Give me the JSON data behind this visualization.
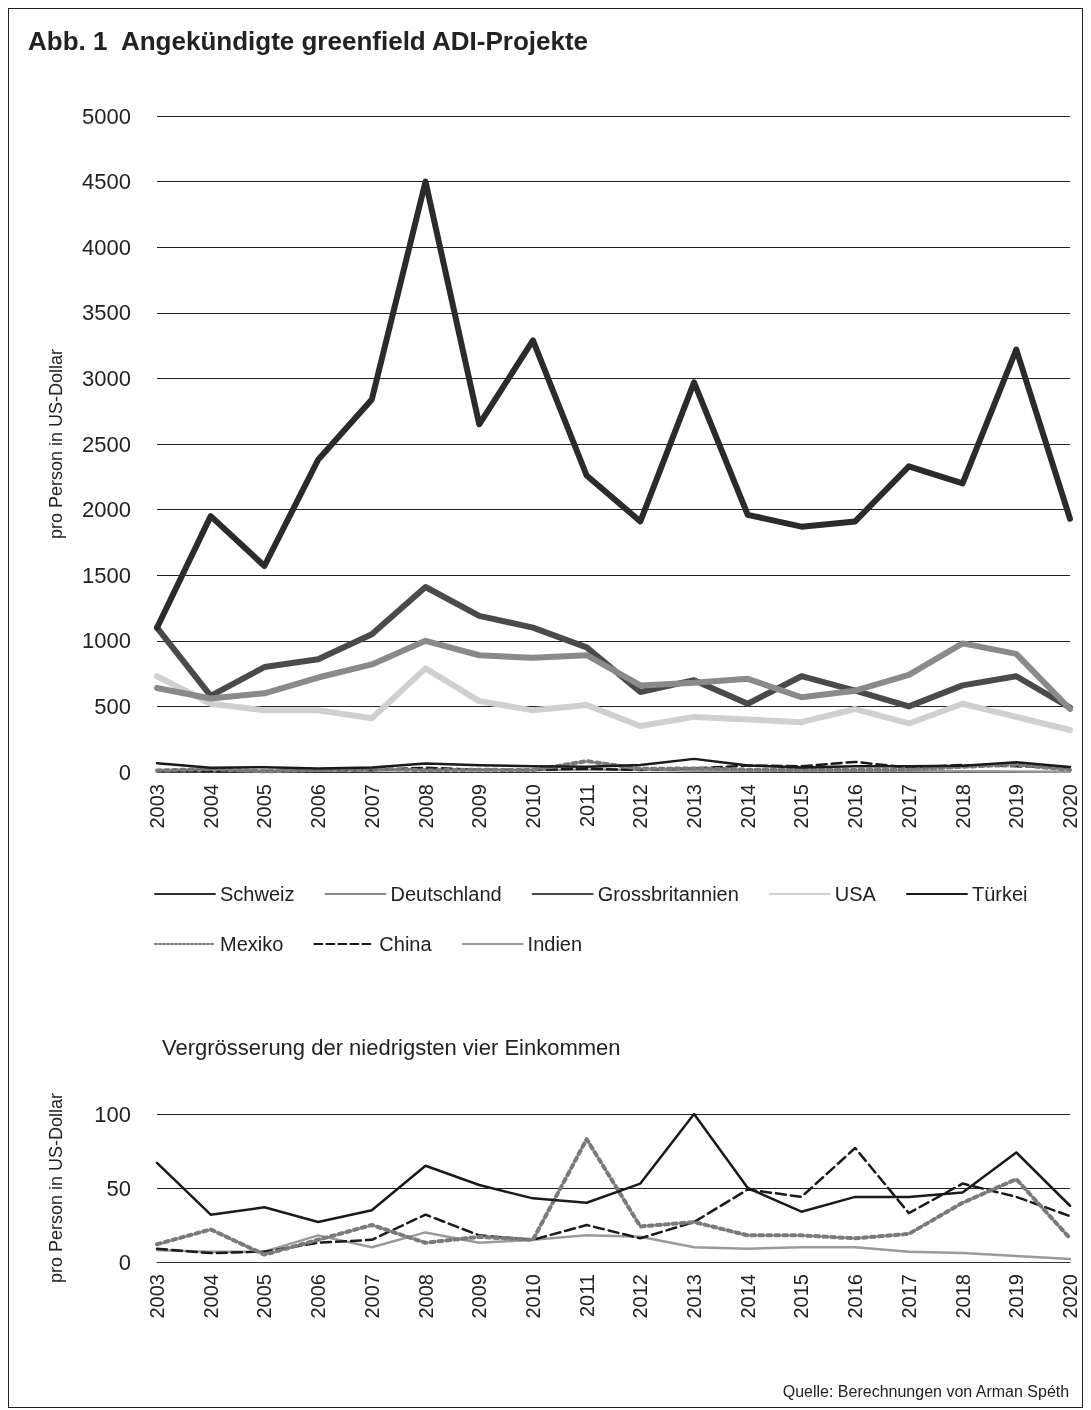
{
  "chart_data": [
    {
      "type": "line",
      "title": "Abb. 1  Angekündigte greenfield ADI-Projekte",
      "ylabel": "pro Person in US-Dollar",
      "categories": [
        "2003",
        "2004",
        "2005",
        "2006",
        "2007",
        "2008",
        "2009",
        "2010",
        "2011",
        "2012",
        "2013",
        "2014",
        "2015",
        "2016",
        "2017",
        "2018",
        "2019",
        "2020"
      ],
      "series": [
        {
          "name": "Schweiz",
          "color": "#2b2b2b",
          "line_style": "solid",
          "values": [
            1100,
            1950,
            1570,
            2380,
            2840,
            4500,
            2650,
            3290,
            2260,
            1910,
            2970,
            1960,
            1870,
            1910,
            2330,
            2200,
            3220,
            1930
          ]
        },
        {
          "name": "Deutschland",
          "color": "#8a8a8a",
          "line_style": "solid",
          "values": [
            640,
            560,
            600,
            720,
            820,
            1000,
            890,
            870,
            890,
            660,
            680,
            710,
            570,
            620,
            740,
            980,
            900,
            480
          ]
        },
        {
          "name": "Grossbritannien",
          "color": "#4a4a4a",
          "line_style": "solid",
          "values": [
            1100,
            580,
            800,
            860,
            1050,
            1410,
            1190,
            1100,
            950,
            610,
            700,
            520,
            730,
            620,
            500,
            660,
            730,
            490
          ]
        },
        {
          "name": "USA",
          "color": "#d0d0d0",
          "line_style": "solid",
          "values": [
            730,
            520,
            470,
            470,
            410,
            790,
            540,
            470,
            510,
            350,
            420,
            400,
            380,
            480,
            370,
            520,
            420,
            320
          ]
        },
        {
          "name": "Türkei",
          "color": "#1a1a1a",
          "line_style": "solid",
          "values": [
            67,
            32,
            37,
            27,
            35,
            65,
            52,
            43,
            40,
            53,
            100,
            50,
            34,
            44,
            44,
            47,
            74,
            38
          ]
        },
        {
          "name": "Mexiko",
          "color": "#7a7a7a",
          "line_style": "dotted",
          "values": [
            12,
            22,
            5,
            15,
            25,
            13,
            17,
            15,
            83,
            24,
            27,
            18,
            18,
            16,
            19,
            40,
            56,
            16
          ]
        },
        {
          "name": "China",
          "color": "#1a1a1a",
          "line_style": "dashed",
          "values": [
            9,
            6,
            7,
            13,
            15,
            32,
            18,
            15,
            25,
            16,
            27,
            49,
            44,
            77,
            33,
            53,
            44,
            31
          ]
        },
        {
          "name": "Indien",
          "color": "#9a9a9a",
          "line_style": "solid",
          "values": [
            8,
            7,
            7,
            18,
            10,
            20,
            13,
            15,
            18,
            17,
            10,
            9,
            10,
            10,
            7,
            6,
            4,
            2
          ]
        }
      ],
      "ylim": [
        0,
        5000
      ],
      "yticks": [
        0,
        500,
        1000,
        1500,
        2000,
        2500,
        3000,
        3500,
        4000,
        4500,
        5000
      ],
      "grid": "y",
      "legend": "bottom"
    },
    {
      "type": "line",
      "title": "Vergrösserung der niedrigsten vier Einkommen",
      "ylabel": "pro Person in US-Dollar",
      "categories": [
        "2003",
        "2004",
        "2005",
        "2006",
        "2007",
        "2008",
        "2009",
        "2010",
        "2011",
        "2012",
        "2013",
        "2014",
        "2015",
        "2016",
        "2017",
        "2018",
        "2019",
        "2020"
      ],
      "series": [
        {
          "color": "#1a1a1a",
          "line_style": "solid",
          "values": [
            67,
            32,
            37,
            27,
            35,
            65,
            52,
            43,
            40,
            53,
            100,
            50,
            34,
            44,
            44,
            47,
            74,
            38
          ]
        },
        {
          "color": "#7a7a7a",
          "line_style": "dotted",
          "values": [
            12,
            22,
            5,
            15,
            25,
            13,
            17,
            15,
            83,
            24,
            27,
            18,
            18,
            16,
            19,
            40,
            56,
            16
          ]
        },
        {
          "color": "#1a1a1a",
          "line_style": "dashed",
          "values": [
            9,
            6,
            7,
            13,
            15,
            32,
            18,
            15,
            25,
            16,
            27,
            49,
            44,
            77,
            33,
            53,
            44,
            31
          ]
        },
        {
          "color": "#9a9a9a",
          "line_style": "solid",
          "values": [
            8,
            7,
            7,
            18,
            10,
            20,
            13,
            15,
            18,
            17,
            10,
            9,
            10,
            10,
            7,
            6,
            4,
            2
          ]
        }
      ],
      "ylim": [
        0,
        100
      ],
      "yticks": [
        0,
        50,
        100
      ],
      "grid": "y",
      "legend": false,
      "annotations": [
        "Quelle: Berechnungen von Arman Spéth"
      ]
    }
  ]
}
